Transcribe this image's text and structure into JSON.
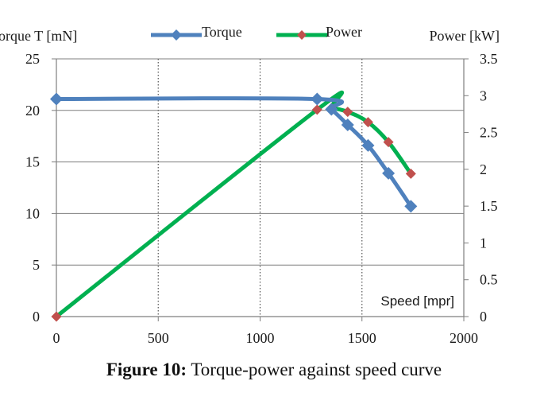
{
  "chart_data": {
    "type": "line",
    "x_label": "Speed [mpr]",
    "y_left_label": "orque T [mN]",
    "y_right_label": "Power [kW]",
    "x_range": [
      0,
      2000
    ],
    "y_left_range": [
      0,
      25
    ],
    "y_right_range": [
      0,
      3.5
    ],
    "x_ticks": [
      "0",
      "500",
      "1000",
      "1500",
      "2000"
    ],
    "y_left_ticks": [
      "0",
      "5",
      "10",
      "15",
      "20",
      "25"
    ],
    "y_right_ticks": [
      "0",
      "0.5",
      "1",
      "1.5",
      "2",
      "2.5",
      "3",
      "3.5"
    ],
    "grid": "vertical dotted lines at x ticks, solid horizontal lines at left-axis ticks",
    "legend_position": "top",
    "series": [
      {
        "name": "Torque",
        "axis": "left",
        "color": "#4f81bd",
        "marker": "diamond",
        "points": [
          [
            0,
            21.1
          ],
          [
            1280,
            21.1
          ],
          [
            1350,
            20.1
          ],
          [
            1430,
            18.6
          ],
          [
            1530,
            16.6
          ],
          [
            1630,
            13.9
          ],
          [
            1740,
            10.7
          ]
        ]
      },
      {
        "name": "Power",
        "axis": "right",
        "color": "#00b050",
        "marker_color": "#c0504d",
        "marker": "diamond",
        "points": [
          [
            0,
            0
          ],
          [
            1280,
            2.81
          ],
          [
            1350,
            2.83
          ],
          [
            1430,
            2.78
          ],
          [
            1530,
            2.64
          ],
          [
            1630,
            2.37
          ],
          [
            1740,
            1.94
          ]
        ]
      }
    ]
  },
  "caption": {
    "label": "Figure 10:",
    "text": " Torque-power against speed curve"
  }
}
